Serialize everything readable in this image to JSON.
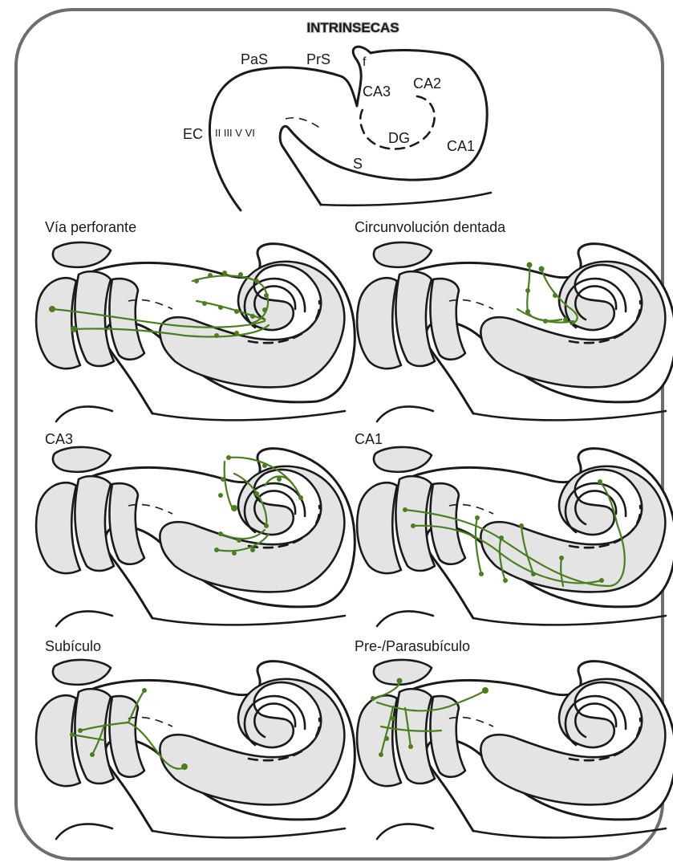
{
  "title": "INTRINSECAS",
  "overview_labels": {
    "pas": "PaS",
    "prs": "PrS",
    "f": "f",
    "ca3": "CA3",
    "ca2": "CA2",
    "ec": "EC",
    "layers": "II III V VI",
    "dg": "DG",
    "ca1": "CA1",
    "s": "S"
  },
  "panels": [
    {
      "label": "Vía perforante"
    },
    {
      "label": "Circunvolución dentada"
    },
    {
      "label": "CA3"
    },
    {
      "label": "CA1"
    },
    {
      "label": "Subículo"
    },
    {
      "label": "Pre-/Parasubículo"
    }
  ],
  "colors": {
    "projection": "#4a7f1e",
    "tissue_fill": "#e4e4e4",
    "outline": "#1a1a1a"
  }
}
